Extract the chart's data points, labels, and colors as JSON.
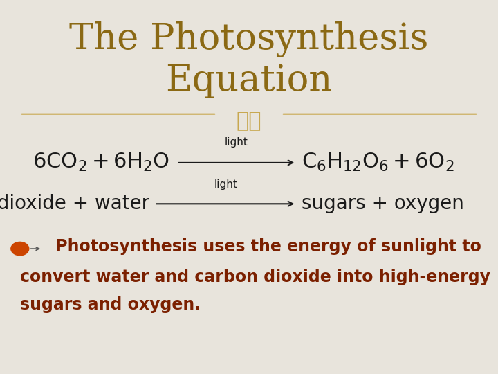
{
  "bg_color": "#e8e4dc",
  "title_line1": "The Photosynthesis",
  "title_line2": "Equation",
  "title_color": "#8B6914",
  "title_fontsize": 38,
  "divider_color": "#c8a850",
  "eq_color": "#1a1a1a",
  "eq_fontsize": 22,
  "light_label": "light",
  "light_fontsize": 11,
  "eq2_left": "carbon dioxide + water",
  "eq2_right": "sugars + oxygen",
  "eq2_fontsize": 20,
  "body_text_line1": " Photosynthesis uses the energy of sunlight to",
  "body_text_line2": "convert water and carbon dioxide into high-energy",
  "body_text_line3": "sugars and oxygen.",
  "body_color": "#7B2000",
  "body_fontsize": 17,
  "icon_color": "#CC4400"
}
